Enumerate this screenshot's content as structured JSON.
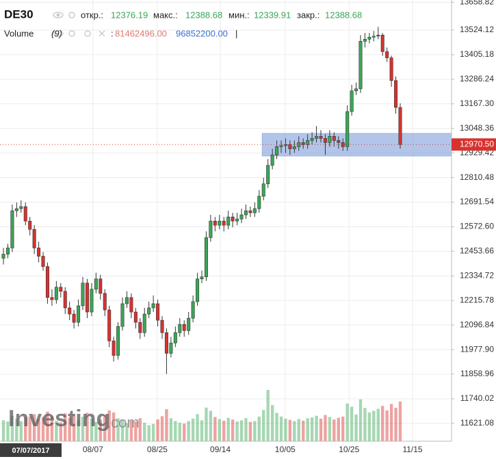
{
  "header": {
    "symbol": "DE30",
    "open_label": "откр.:",
    "open": "12376.19",
    "high_label": "макс.:",
    "high": "12388.68",
    "low_label": "мин.:",
    "low": "12339.91",
    "close_label": "закр.:",
    "close": "12388.68",
    "volume_label": "Volume",
    "volume_param": "(9)",
    "volume_sep": ":",
    "volume_a": "81462496.00",
    "volume_b": "96852200.00",
    "volume_end": "|"
  },
  "watermark": {
    "brand": "Investing",
    "suffix": ".com"
  },
  "chart_data": {
    "type": "candlestick",
    "ylim": [
      11534.6,
      13669.8
    ],
    "yticks": [
      13658.82,
      13524.12,
      13405.18,
      13286.24,
      {
        "value": 13167.3,
        "label": "13167.30"
      },
      13048.36,
      12929.42,
      12810.48,
      12691.54,
      {
        "value": 12572.6,
        "label": "12572.60"
      },
      12453.66,
      12334.72,
      12215.78,
      12096.84,
      {
        "value": 11977.9,
        "label": "11977.90"
      },
      11858.96,
      11740.02,
      11621.08
    ],
    "xlim": [
      -0.78,
      101.64
    ],
    "xticks": [
      {
        "value": 20.3,
        "label": "08/07"
      },
      {
        "value": 34.9,
        "label": "08/25"
      },
      {
        "value": 49.2,
        "label": "09/14"
      },
      {
        "value": 63.9,
        "label": "10/05"
      },
      {
        "value": 78.4,
        "label": "10/25"
      },
      {
        "value": 92.8,
        "label": "11/15"
      }
    ],
    "cursor_date": {
      "value": 0,
      "label": "07/07/2017"
    },
    "last_price": {
      "value": 12970.5,
      "label": "12970.50"
    },
    "zone": {
      "x_start": 58.7,
      "low": 12915,
      "high": 13024
    },
    "up_color": "#3aa655",
    "down_color": "#d8322f",
    "candles": [
      [
        12420,
        12470,
        12390,
        12440
      ],
      [
        12440,
        12490,
        12420,
        12470
      ],
      [
        12470,
        12680,
        12450,
        12650
      ],
      [
        12650,
        12690,
        12620,
        12660
      ],
      [
        12660,
        12700,
        12640,
        12670
      ],
      [
        12670,
        12690,
        12580,
        12600
      ],
      [
        12600,
        12620,
        12530,
        12560
      ],
      [
        12560,
        12580,
        12440,
        12470
      ],
      [
        12470,
        12500,
        12400,
        12430
      ],
      [
        12430,
        12450,
        12360,
        12380
      ],
      [
        12380,
        12400,
        12200,
        12230
      ],
      [
        12230,
        12270,
        12190,
        12220
      ],
      [
        12220,
        12310,
        12200,
        12280
      ],
      [
        12280,
        12300,
        12230,
        12260
      ],
      [
        12260,
        12280,
        12150,
        12180
      ],
      [
        12180,
        12210,
        12120,
        12150
      ],
      [
        12150,
        12170,
        12080,
        12110
      ],
      [
        12110,
        12220,
        12090,
        12190
      ],
      [
        12190,
        12330,
        12170,
        12300
      ],
      [
        12300,
        12320,
        12130,
        12160
      ],
      [
        12160,
        12300,
        12140,
        12270
      ],
      [
        12270,
        12350,
        12250,
        12320
      ],
      [
        12320,
        12340,
        12220,
        12250
      ],
      [
        12250,
        12270,
        12140,
        12170
      ],
      [
        12170,
        12190,
        11990,
        12020
      ],
      [
        12020,
        12040,
        11920,
        11950
      ],
      [
        11950,
        12110,
        11930,
        12090
      ],
      [
        12090,
        12230,
        12070,
        12200
      ],
      [
        12200,
        12260,
        12180,
        12230
      ],
      [
        12230,
        12250,
        12130,
        12160
      ],
      [
        12160,
        12180,
        12080,
        12110
      ],
      [
        12110,
        12130,
        12030,
        12060
      ],
      [
        12060,
        12180,
        12040,
        12150
      ],
      [
        12150,
        12210,
        12130,
        12180
      ],
      [
        12180,
        12240,
        12160,
        12200
      ],
      [
        12200,
        12220,
        12090,
        12120
      ],
      [
        12120,
        12140,
        12030,
        12060
      ],
      [
        12060,
        12080,
        11860,
        11960
      ],
      [
        11960,
        12040,
        11940,
        12010
      ],
      [
        12010,
        12090,
        11990,
        12060
      ],
      [
        12060,
        12130,
        12040,
        12100
      ],
      [
        12100,
        12120,
        12040,
        12070
      ],
      [
        12070,
        12160,
        12050,
        12130
      ],
      [
        12130,
        12240,
        12110,
        12210
      ],
      [
        12210,
        12350,
        12190,
        12320
      ],
      [
        12320,
        12360,
        12300,
        12330
      ],
      [
        12330,
        12550,
        12310,
        12520
      ],
      [
        12520,
        12630,
        12500,
        12600
      ],
      [
        12600,
        12620,
        12550,
        12580
      ],
      [
        12580,
        12630,
        12560,
        12600
      ],
      [
        12600,
        12620,
        12550,
        12580
      ],
      [
        12580,
        12650,
        12560,
        12620
      ],
      [
        12620,
        12640,
        12570,
        12600
      ],
      [
        12600,
        12640,
        12580,
        12610
      ],
      [
        12610,
        12660,
        12590,
        12630
      ],
      [
        12630,
        12680,
        12610,
        12650
      ],
      [
        12650,
        12670,
        12620,
        12640
      ],
      [
        12640,
        12690,
        12620,
        12660
      ],
      [
        12660,
        12750,
        12640,
        12720
      ],
      [
        12720,
        12810,
        12700,
        12780
      ],
      [
        12780,
        12900,
        12760,
        12870
      ],
      [
        12870,
        12950,
        12850,
        12920
      ],
      [
        12920,
        12990,
        12900,
        12960
      ],
      [
        12960,
        12990,
        12930,
        12965
      ],
      [
        12965,
        13000,
        12930,
        12970
      ],
      [
        12970,
        12990,
        12920,
        12950
      ],
      [
        12950,
        12990,
        12930,
        12960
      ],
      [
        12960,
        13010,
        12940,
        12980
      ],
      [
        12980,
        13000,
        12950,
        12970
      ],
      [
        12970,
        13020,
        12950,
        12990
      ],
      [
        12990,
        13030,
        12970,
        13000
      ],
      [
        13000,
        13060,
        12980,
        13010
      ],
      [
        13010,
        13040,
        12980,
        13000
      ],
      [
        13000,
        13020,
        12920,
        12980
      ],
      [
        12980,
        13040,
        12960,
        13010
      ],
      [
        13010,
        13030,
        12960,
        12990
      ],
      [
        12990,
        13010,
        12950,
        12980
      ],
      [
        12980,
        13000,
        12940,
        12960
      ],
      [
        12960,
        13160,
        12940,
        13130
      ],
      [
        13130,
        13260,
        13110,
        13230
      ],
      [
        13230,
        13270,
        13210,
        13240
      ],
      [
        13240,
        13500,
        13220,
        13470
      ],
      [
        13470,
        13510,
        13440,
        13480
      ],
      [
        13480,
        13510,
        13460,
        13490
      ],
      [
        13490,
        13520,
        13470,
        13495
      ],
      [
        13495,
        13540,
        13480,
        13500
      ],
      [
        13500,
        13510,
        13400,
        13420
      ],
      [
        13420,
        13440,
        13370,
        13390
      ],
      [
        13390,
        13400,
        13250,
        13280
      ],
      [
        13280,
        13300,
        13120,
        13150
      ],
      [
        13150,
        13170,
        12950,
        12970.5
      ]
    ],
    "volume_ylim": [
      0,
      150000000
    ],
    "volume": [
      51000000.0,
      48000000.0,
      62000000.0,
      55000000.0,
      49000000.0,
      58000000.0,
      60000000.0,
      66000000.0,
      54000000.0,
      59000000.0,
      72000000.0,
      61000000.0,
      50000000.0,
      46000000.0,
      68000000.0,
      57000000.0,
      63000000.0,
      52000000.0,
      60000000.0,
      69000000.0,
      55000000.0,
      47000000.0,
      53000000.0,
      64000000.0,
      75000000.0,
      70000000.0,
      56000000.0,
      51000000.0,
      44000000.0,
      50000000.0,
      48000000.0,
      56000000.0,
      45000000.0,
      39000000.0,
      42000000.0,
      53000000.0,
      61000000.0,
      78000000.0,
      56000000.0,
      49000000.0,
      45000000.0,
      43000000.0,
      49000000.0,
      55000000.0,
      66000000.0,
      51000000.0,
      82000000.0,
      74000000.0,
      59000000.0,
      54000000.0,
      50000000.0,
      57000000.0,
      53000000.0,
      48000000.0,
      51000000.0,
      56000000.0,
      47000000.0,
      49000000.0,
      60000000.0,
      76000000.0,
      125000000.0,
      88000000.0,
      69000000.0,
      60000000.0,
      55000000.0,
      52000000.0,
      49000000.0,
      54000000.0,
      50000000.0,
      56000000.0,
      58000000.0,
      62000000.0,
      55000000.0,
      64000000.0,
      59000000.0,
      53000000.0,
      57000000.0,
      60000000.0,
      92000000.0,
      84000000.0,
      65000000.0,
      102000000.0,
      81000000.0,
      70000000.0,
      74000000.0,
      79000000.0,
      86000000.0,
      75000000.0,
      91000000.0,
      81462496,
      96852200
    ]
  }
}
